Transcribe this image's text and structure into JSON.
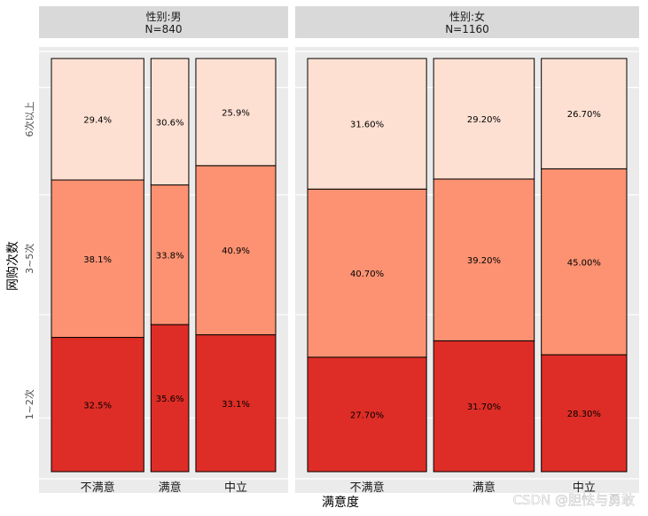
{
  "chart_data": {
    "type": "mosaic",
    "xlabel": "满意度",
    "ylabel": "网购次数",
    "y_categories": [
      "1~2次",
      "3~5次",
      "6次以上"
    ],
    "colors": {
      "1~2次": "#de2d26",
      "3~5次": "#fc9272",
      "6次以上": "#fee0d2",
      "panel_bg": "#ebebeb",
      "strip_bg": "#d9d9d9",
      "grid": "#ffffff"
    },
    "panels": [
      {
        "strip_line1": "性别:男",
        "strip_line2": "N=840",
        "columns": [
          {
            "category": "不满意",
            "share": 0.44,
            "segments": [
              {
                "level": "1~2次",
                "value": 32.5,
                "label": "32.5%"
              },
              {
                "level": "3~5次",
                "value": 38.1,
                "label": "38.1%"
              },
              {
                "level": "6次以上",
                "value": 29.4,
                "label": "29.4%"
              }
            ]
          },
          {
            "category": "满意",
            "share": 0.18,
            "segments": [
              {
                "level": "1~2次",
                "value": 35.6,
                "label": "35.6%"
              },
              {
                "level": "3~5次",
                "value": 33.8,
                "label": "33.8%"
              },
              {
                "level": "6次以上",
                "value": 30.6,
                "label": "30.6%"
              }
            ]
          },
          {
            "category": "中立",
            "share": 0.38,
            "segments": [
              {
                "level": "1~2次",
                "value": 33.1,
                "label": "33.1%"
              },
              {
                "level": "3~5次",
                "value": 40.9,
                "label": "40.9%"
              },
              {
                "level": "6次以上",
                "value": 25.9,
                "label": "25.9%"
              }
            ]
          }
        ]
      },
      {
        "strip_line1": "性别:女",
        "strip_line2": "N=1160",
        "columns": [
          {
            "category": "不满意",
            "share": 0.39,
            "segments": [
              {
                "level": "1~2次",
                "value": 27.7,
                "label": "27.70%"
              },
              {
                "level": "3~5次",
                "value": 40.7,
                "label": "40.70%"
              },
              {
                "level": "6次以上",
                "value": 31.6,
                "label": "31.60%"
              }
            ]
          },
          {
            "category": "满意",
            "share": 0.33,
            "segments": [
              {
                "level": "1~2次",
                "value": 31.7,
                "label": "31.70%"
              },
              {
                "level": "3~5次",
                "value": 39.2,
                "label": "39.20%"
              },
              {
                "level": "6次以上",
                "value": 29.2,
                "label": "29.20%"
              }
            ]
          },
          {
            "category": "中立",
            "share": 0.28,
            "segments": [
              {
                "level": "1~2次",
                "value": 28.3,
                "label": "28.30%"
              },
              {
                "level": "3~5次",
                "value": 45.0,
                "label": "45.00%"
              },
              {
                "level": "6次以上",
                "value": 26.7,
                "label": "26.70%"
              }
            ]
          }
        ]
      }
    ]
  },
  "watermark": "CSDN @胆怯与勇敢"
}
